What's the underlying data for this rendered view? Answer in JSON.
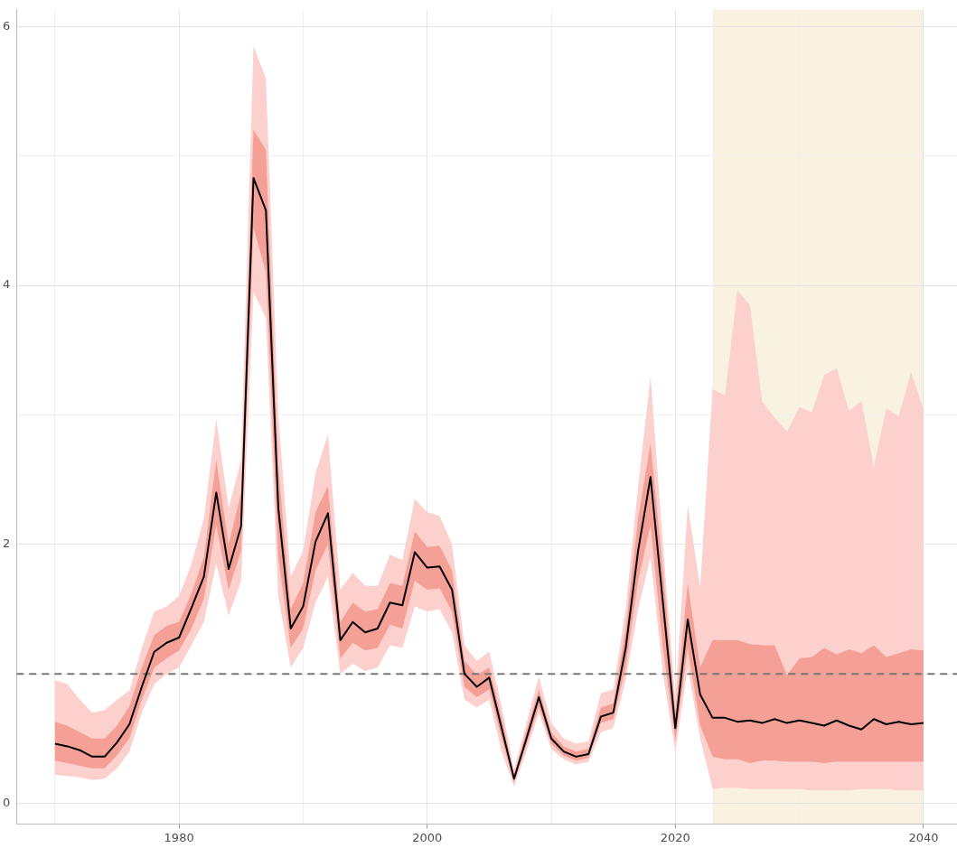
{
  "chart_data": {
    "type": "line",
    "x": [
      1970,
      1971,
      1972,
      1973,
      1974,
      1975,
      1976,
      1977,
      1978,
      1979,
      1980,
      1981,
      1982,
      1983,
      1984,
      1985,
      1986,
      1987,
      1988,
      1989,
      1990,
      1991,
      1992,
      1993,
      1994,
      1995,
      1996,
      1997,
      1998,
      1999,
      2000,
      2001,
      2002,
      2003,
      2004,
      2005,
      2006,
      2007,
      2008,
      2009,
      2010,
      2011,
      2012,
      2013,
      2014,
      2015,
      2016,
      2017,
      2018,
      2019,
      2020,
      2021,
      2022,
      2023,
      2024,
      2025,
      2026,
      2027,
      2028,
      2029,
      2030,
      2031,
      2032,
      2033,
      2034,
      2035,
      2036,
      2037,
      2038,
      2039,
      2040
    ],
    "series": [
      {
        "color": "#fcd0cc",
        "values": [
          null,
          null,
          null,
          null,
          null,
          null,
          null,
          null,
          null,
          null,
          null,
          null,
          null,
          null,
          null,
          null,
          null,
          null,
          null,
          null,
          null,
          null,
          null,
          null,
          null,
          null,
          null,
          null,
          null,
          null,
          null,
          null,
          null,
          null,
          null,
          null,
          null,
          null,
          null,
          null,
          null,
          null,
          null,
          null,
          null,
          null,
          null,
          null,
          null,
          null,
          null,
          null,
          null,
          null,
          null,
          null,
          null,
          null,
          null,
          null,
          null,
          null,
          null,
          null,
          null,
          null,
          null,
          null,
          null,
          null,
          null
        ],
        "lower": [
          0.22,
          0.21,
          0.2,
          0.18,
          0.19,
          0.27,
          0.4,
          0.7,
          0.92,
          1.0,
          1.05,
          1.22,
          1.4,
          1.85,
          1.45,
          1.72,
          3.95,
          3.75,
          1.6,
          1.05,
          1.2,
          1.55,
          1.75,
          1.0,
          1.08,
          1.02,
          1.05,
          1.22,
          1.2,
          1.52,
          1.48,
          1.5,
          1.32,
          0.8,
          0.74,
          0.8,
          0.4,
          0.13,
          0.4,
          0.7,
          0.42,
          0.34,
          0.3,
          0.32,
          0.55,
          0.58,
          0.95,
          1.5,
          1.9,
          1.0,
          0.4,
          1.05,
          0.5,
          0.11,
          0.12,
          0.12,
          0.11,
          0.11,
          0.11,
          0.11,
          0.11,
          0.1,
          0.1,
          0.1,
          0.1,
          0.11,
          0.11,
          0.11,
          0.1,
          0.1,
          0.1
        ],
        "upper": [
          0.95,
          0.92,
          0.8,
          0.7,
          0.72,
          0.8,
          0.87,
          1.2,
          1.48,
          1.52,
          1.6,
          1.85,
          2.2,
          2.97,
          2.28,
          2.65,
          5.85,
          5.6,
          3.0,
          1.75,
          1.95,
          2.55,
          2.85,
          1.65,
          1.78,
          1.68,
          1.68,
          1.92,
          1.88,
          2.35,
          2.25,
          2.22,
          2.0,
          1.22,
          1.1,
          1.17,
          0.75,
          0.26,
          0.62,
          0.98,
          0.62,
          0.5,
          0.46,
          0.48,
          0.85,
          0.88,
          1.5,
          2.45,
          3.3,
          2.0,
          0.8,
          2.3,
          1.67,
          3.2,
          3.15,
          3.96,
          3.85,
          3.1,
          2.98,
          2.87,
          3.06,
          3.02,
          3.31,
          3.36,
          3.03,
          3.11,
          2.6,
          3.05,
          2.99,
          3.33,
          3.04
        ]
      },
      {
        "color": "#f5a096",
        "values": [
          null,
          null,
          null,
          null,
          null,
          null,
          null,
          null,
          null,
          null,
          null,
          null,
          null,
          null,
          null,
          null,
          null,
          null,
          null,
          null,
          null,
          null,
          null,
          null,
          null,
          null,
          null,
          null,
          null,
          null,
          null,
          null,
          null,
          null,
          null,
          null,
          null,
          null,
          null,
          null,
          null,
          null,
          null,
          null,
          null,
          null,
          null,
          null,
          null,
          null,
          null,
          null,
          null,
          null,
          null,
          null,
          null,
          null,
          null,
          null,
          null,
          null,
          null,
          null,
          null,
          null,
          null,
          null,
          null,
          null,
          null
        ],
        "lower": [
          0.33,
          0.31,
          0.29,
          0.27,
          0.27,
          0.37,
          0.5,
          0.8,
          1.05,
          1.12,
          1.18,
          1.35,
          1.58,
          2.15,
          1.65,
          1.95,
          4.45,
          4.1,
          1.9,
          1.2,
          1.35,
          1.8,
          2.0,
          1.12,
          1.24,
          1.18,
          1.2,
          1.38,
          1.35,
          1.72,
          1.65,
          1.66,
          1.48,
          0.9,
          0.82,
          0.88,
          0.5,
          0.16,
          0.45,
          0.75,
          0.46,
          0.37,
          0.33,
          0.35,
          0.62,
          0.65,
          1.05,
          1.72,
          2.15,
          1.2,
          0.48,
          1.2,
          0.6,
          0.36,
          0.34,
          0.34,
          0.31,
          0.33,
          0.33,
          0.32,
          0.32,
          0.32,
          0.31,
          0.32,
          0.32,
          0.32,
          0.32,
          0.32,
          0.32,
          0.32,
          0.32
        ],
        "upper": [
          0.63,
          0.6,
          0.55,
          0.5,
          0.5,
          0.6,
          0.75,
          1.05,
          1.3,
          1.37,
          1.4,
          1.62,
          1.9,
          2.65,
          2.0,
          2.4,
          5.2,
          5.05,
          2.6,
          1.5,
          1.7,
          2.25,
          2.45,
          1.4,
          1.55,
          1.48,
          1.5,
          1.7,
          1.68,
          2.1,
          1.98,
          1.99,
          1.8,
          1.1,
          0.99,
          1.05,
          0.66,
          0.22,
          0.56,
          0.88,
          0.55,
          0.44,
          0.4,
          0.42,
          0.74,
          0.77,
          1.35,
          2.2,
          2.78,
          1.8,
          0.7,
          1.7,
          1.05,
          1.26,
          1.26,
          1.26,
          1.23,
          1.22,
          1.22,
          0.99,
          1.12,
          1.13,
          1.2,
          1.15,
          1.19,
          1.16,
          1.22,
          1.13,
          1.16,
          1.19,
          1.18
        ]
      },
      {
        "color": "#000000",
        "values": [
          0.46,
          0.44,
          0.41,
          0.36,
          0.36,
          0.47,
          0.61,
          0.9,
          1.17,
          1.24,
          1.28,
          1.51,
          1.75,
          2.4,
          1.81,
          2.14,
          4.83,
          4.58,
          2.28,
          1.35,
          1.52,
          2.02,
          2.24,
          1.26,
          1.4,
          1.32,
          1.35,
          1.55,
          1.53,
          1.94,
          1.82,
          1.83,
          1.65,
          1.0,
          0.9,
          0.97,
          0.58,
          0.19,
          0.5,
          0.82,
          0.5,
          0.4,
          0.36,
          0.38,
          0.67,
          0.7,
          1.2,
          1.95,
          2.52,
          1.55,
          0.58,
          1.42,
          0.84,
          0.66,
          0.66,
          0.63,
          0.64,
          0.62,
          0.65,
          0.62,
          0.64,
          0.62,
          0.6,
          0.64,
          0.6,
          0.57,
          0.65,
          0.61,
          0.63,
          0.61,
          0.62
        ]
      }
    ],
    "xlim": [
      1966.9,
      2042.7
    ],
    "xticks": [
      {
        "value": 1970,
        "label": null
      },
      1980,
      {
        "value": 1990,
        "label": null
      },
      2000,
      {
        "value": 2010,
        "label": null
      },
      2020,
      {
        "value": 2030,
        "label": null
      },
      2040
    ],
    "ylim": [
      -0.16,
      6.13
    ],
    "yticks": [
      0,
      {
        "value": 1,
        "label": null
      },
      2,
      {
        "value": 3,
        "label": null
      },
      4,
      {
        "value": 5,
        "label": null
      },
      6
    ],
    "ref_lines": [
      {
        "axis": "y",
        "value": 1,
        "color": "#777777",
        "line_style": "dashed"
      }
    ],
    "bands": [
      {
        "axis": "x",
        "from": 2023,
        "to": 2040,
        "color": "#faf2e1"
      }
    ],
    "grid": true,
    "legend": false,
    "marker": "none",
    "line_style": "solid"
  }
}
